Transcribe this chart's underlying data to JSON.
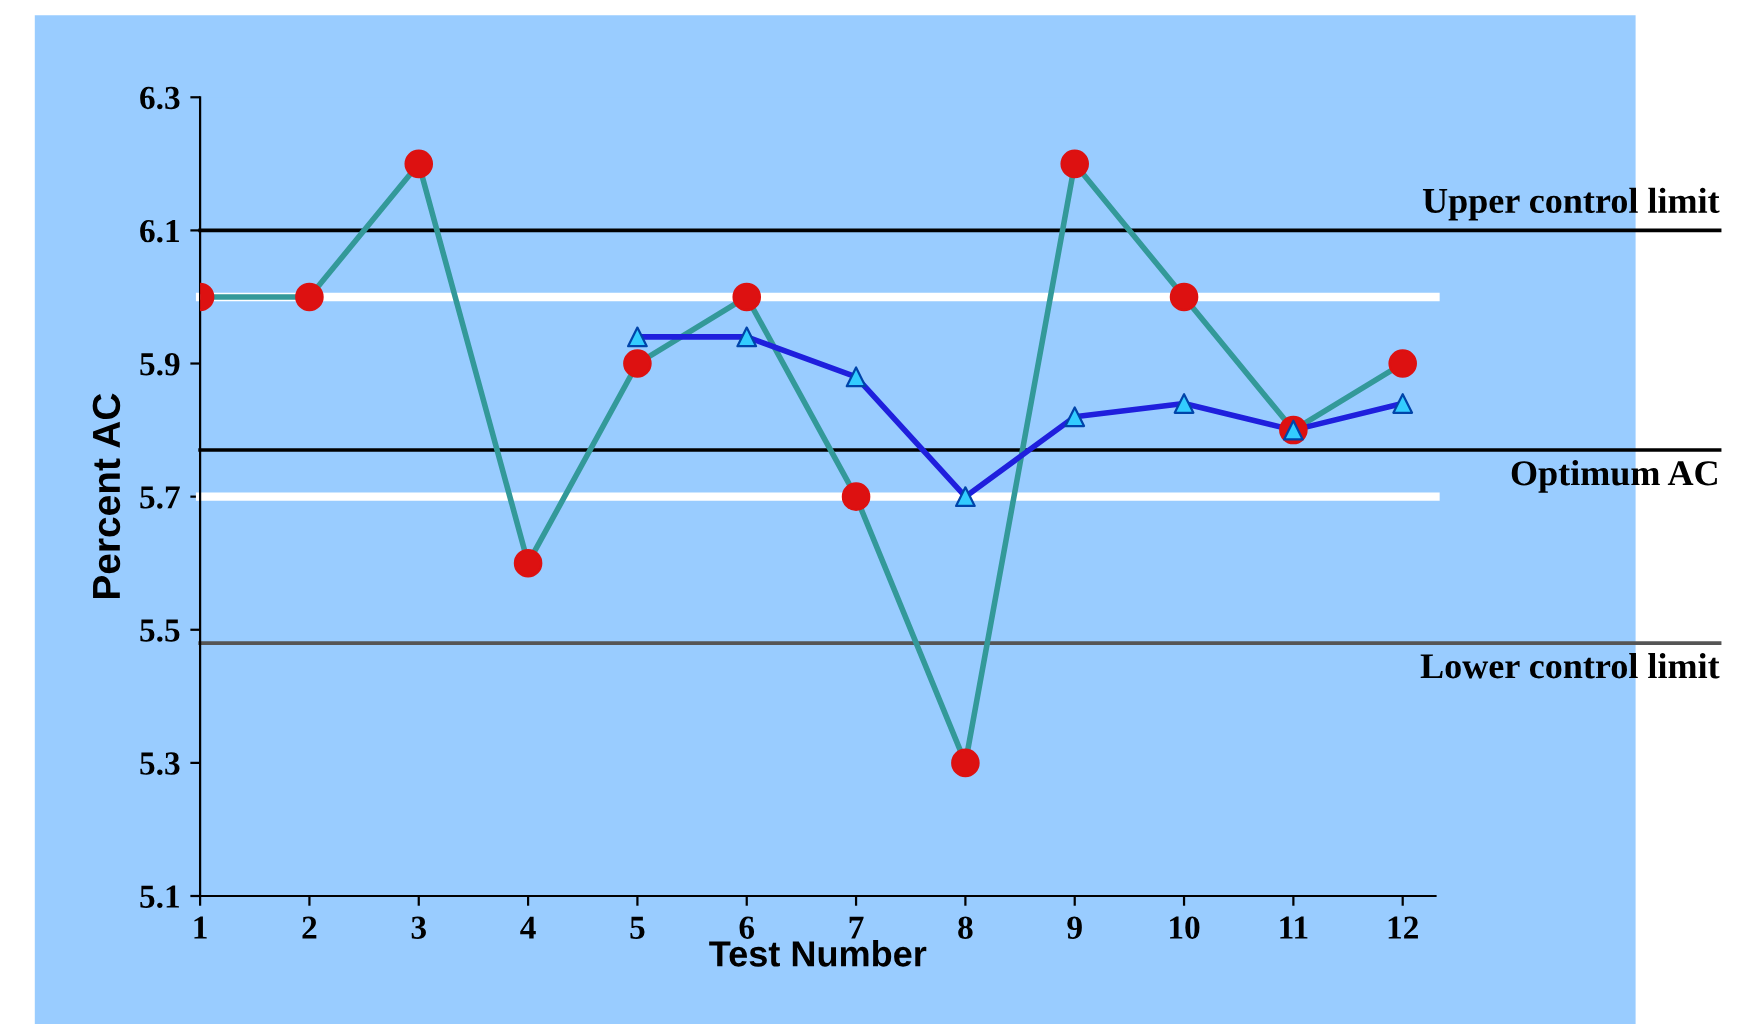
{
  "chart_data": {
    "type": "line",
    "xlabel": "Test Number",
    "ylabel": "Percent AC",
    "x": [
      1,
      2,
      3,
      4,
      5,
      6,
      7,
      8,
      9,
      10,
      11,
      12
    ],
    "series": [
      {
        "color": "#339999",
        "colors": [
          "#dd1111",
          "#dd1111",
          "#dd1111",
          "#dd1111",
          "#dd1111",
          "#dd1111",
          "#dd1111",
          "#dd1111",
          "#dd1111",
          "#dd1111",
          "#dd1111",
          "#dd1111"
        ],
        "marker": "circle",
        "values": [
          6.0,
          6.0,
          6.2,
          5.6,
          5.9,
          6.0,
          5.7,
          5.3,
          6.2,
          6.0,
          5.8,
          5.9
        ]
      },
      {
        "color": "#1f1fdd",
        "colors": [
          null,
          null,
          null,
          null,
          "#33ccff",
          "#33ccff",
          "#33ccff",
          "#33ccff",
          "#33ccff",
          "#33ccff",
          "#33ccff",
          "#33ccff"
        ],
        "marker": "triangle",
        "values": [
          null,
          null,
          null,
          null,
          5.94,
          5.94,
          5.88,
          5.7,
          5.82,
          5.84,
          5.8,
          5.84
        ]
      }
    ],
    "ref_lines": [
      {
        "axis": "y",
        "value": 6.1,
        "label": "Upper control limit",
        "color": "#000000"
      },
      {
        "axis": "y",
        "value": 6.0,
        "label": null,
        "color": "#ffffff"
      },
      {
        "axis": "y",
        "value": 5.77,
        "label": "Optimum AC",
        "color": "#000000"
      },
      {
        "axis": "y",
        "value": 5.7,
        "label": null,
        "color": "#ffffff"
      },
      {
        "axis": "y",
        "value": 5.48,
        "label": "Lower control limit",
        "color": "#555555"
      }
    ],
    "xlim": [
      1,
      12.3
    ],
    "ylim": [
      5.1,
      6.3
    ],
    "xticks": [
      1,
      2,
      3,
      4,
      5,
      6,
      7,
      8,
      9,
      10,
      11,
      12
    ],
    "yticks": [
      5.1,
      5.3,
      5.5,
      5.7,
      5.9,
      6.1,
      6.3
    ],
    "grid": false
  }
}
